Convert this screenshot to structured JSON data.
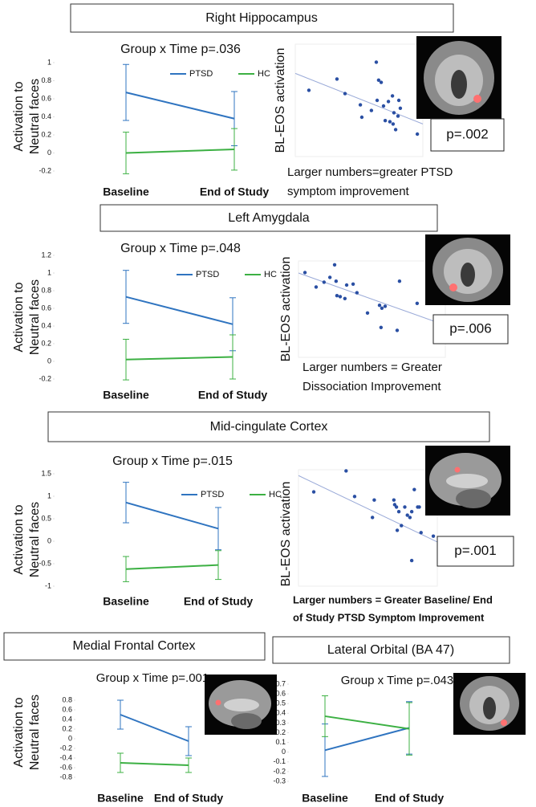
{
  "sections": [
    "Right Hippocampus",
    "Left Amygdala",
    "Mid-cingulate Cortex",
    "Medial Frontal Cortex",
    "Lateral Orbital (BA 47)"
  ],
  "chart_data": [
    {
      "type": "line",
      "title": "Group x Time p=.036",
      "ylabel": [
        "Activation to",
        "Neutral faces"
      ],
      "categories": [
        "Baseline",
        "End of Study"
      ],
      "ylim": [
        -0.2,
        1
      ],
      "yticks": [
        -0.2,
        0,
        0.2,
        0.4,
        0.6,
        0.8,
        1
      ],
      "legend": true,
      "series": [
        {
          "name": "PTSD",
          "color": "#2f74c0",
          "values": [
            0.67,
            0.38
          ],
          "errors": [
            0.31,
            0.3
          ]
        },
        {
          "name": "HC",
          "color": "#3cb043",
          "values": [
            0.0,
            0.04
          ],
          "errors": [
            0.23,
            0.23
          ]
        }
      ]
    },
    {
      "type": "scatter",
      "ylabel": "BL-EOS activation",
      "annotation": "p=.002",
      "caption": [
        "Larger numbers=greater PTSD",
        "symptom improvement"
      ],
      "color": "#2a4fa3",
      "xlim": [
        -20,
        40
      ],
      "ylim": [
        0,
        1
      ],
      "x": [
        -13.6,
        -0.4,
        3.4,
        10.6,
        11.3,
        15.8,
        18.5,
        18.1,
        19.2,
        20.4,
        21.5,
        22.3,
        23.8,
        24.5,
        25.7,
        26,
        26.4,
        27.2,
        28.3,
        28.7,
        29.4,
        37.4
      ],
      "y": [
        0.59,
        0.69,
        0.56,
        0.46,
        0.35,
        0.41,
        0.5,
        0.84,
        0.68,
        0.66,
        0.45,
        0.32,
        0.49,
        0.31,
        0.54,
        0.29,
        0.39,
        0.24,
        0.36,
        0.5,
        0.43,
        0.2
      ],
      "trendline": {
        "x": [
          -20,
          40
        ],
        "y": [
          0.74,
          0.29
        ]
      }
    },
    {
      "type": "line",
      "title": "Group x Time p=.048",
      "ylabel": [
        "Activation to",
        "Neutral faces"
      ],
      "categories": [
        "Baseline",
        "End of Study"
      ],
      "ylim": [
        -0.2,
        1.2
      ],
      "yticks": [
        -0.2,
        0,
        0.2,
        0.4,
        0.6,
        0.8,
        1,
        1.2
      ],
      "legend": true,
      "series": [
        {
          "name": "PTSD",
          "color": "#2f74c0",
          "values": [
            0.73,
            0.42
          ],
          "errors": [
            0.3,
            0.3
          ]
        },
        {
          "name": "HC",
          "color": "#3cb043",
          "values": [
            0.02,
            0.05
          ],
          "errors": [
            0.23,
            0.25
          ]
        }
      ]
    },
    {
      "type": "scatter",
      "ylabel": "BL-EOS activation",
      "annotation": "p=.006",
      "caption": [
        "Larger numbers = Greater",
        "Dissociation  Improvement"
      ],
      "color": "#2a4fa3",
      "xlim": [
        -1,
        4
      ],
      "ylim": [
        0,
        1
      ],
      "x": [
        -0.78,
        -0.4,
        -0.13,
        0.07,
        0.23,
        0.28,
        0.31,
        0.42,
        0.58,
        0.64,
        0.86,
        0.99,
        1.35,
        1.76,
        1.81,
        1.84,
        1.95,
        2.36,
        2.44,
        3.04
      ],
      "y": [
        0.88,
        0.73,
        0.78,
        0.83,
        0.96,
        0.79,
        0.64,
        0.63,
        0.61,
        0.75,
        0.76,
        0.67,
        0.46,
        0.54,
        0.31,
        0.51,
        0.53,
        0.28,
        0.79,
        0.56
      ],
      "trendline": {
        "x": [
          -1,
          4
        ],
        "y": [
          0.875,
          0.333
        ]
      }
    },
    {
      "type": "line",
      "title": "Group x Time p=.015",
      "ylabel": [
        "Activation to",
        "Neutral faces"
      ],
      "categories": [
        "Baseline",
        "End of Study"
      ],
      "ylim": [
        -1,
        1.5
      ],
      "yticks": [
        -1,
        -0.5,
        0,
        0.5,
        1,
        1.5
      ],
      "legend": true,
      "series": [
        {
          "name": "PTSD",
          "color": "#2f74c0",
          "values": [
            0.86,
            0.28
          ],
          "errors": [
            0.45,
            0.47
          ]
        },
        {
          "name": "HC",
          "color": "#3cb043",
          "values": [
            -0.62,
            -0.53
          ],
          "errors": [
            0.28,
            0.32
          ]
        }
      ]
    },
    {
      "type": "scatter",
      "ylabel": "BL-EOS activation",
      "annotation": "p=.001",
      "caption": [
        "Larger numbers = Greater Baseline/ End",
        "of Study PTSD Symptom Improvement"
      ],
      "color": "#2a4fa3",
      "xlim": [
        -20,
        50
      ],
      "ylim": [
        0,
        1
      ],
      "x": [
        -12.3,
        4.0,
        8.3,
        18.2,
        17.3,
        28.1,
        28.5,
        29.4,
        30.6,
        31.9,
        33.6,
        34.9,
        36.2,
        37.1,
        38.4,
        40.1,
        40.9,
        41.8,
        37.1,
        48,
        29.8
      ],
      "y": [
        0.81,
        0.99,
        0.77,
        0.74,
        0.59,
        0.74,
        0.7,
        0.68,
        0.64,
        0.52,
        0.68,
        0.61,
        0.59,
        0.64,
        0.83,
        0.68,
        0.68,
        0.46,
        0.22,
        0.43,
        0.48
      ],
      "trendline": {
        "x": [
          -20,
          50
        ],
        "y": [
          0.95,
          0.38
        ]
      }
    },
    {
      "type": "line",
      "title": "Group x Time p=.001",
      "ylabel": [
        "Activation to",
        "Neutral faces"
      ],
      "categories": [
        "Baseline",
        "End of Study"
      ],
      "ylim": [
        -0.8,
        0.8
      ],
      "yticks": [
        -0.8,
        -0.6,
        -0.4,
        -0.2,
        0,
        0.2,
        0.4,
        0.6,
        0.8
      ],
      "legend": false,
      "series": [
        {
          "color": "#2f74c0",
          "values": [
            0.5,
            -0.05
          ],
          "errors": [
            0.3,
            0.3
          ]
        },
        {
          "color": "#3cb043",
          "values": [
            -0.5,
            -0.55
          ],
          "errors": [
            0.2,
            0.15
          ]
        }
      ]
    },
    {
      "type": "line",
      "title": "Group x Time p=.043",
      "categories": [
        "Baseline",
        "End of Study"
      ],
      "ylim": [
        -0.3,
        0.7
      ],
      "yticks": [
        -0.3,
        -0.2,
        -0.1,
        0,
        0.1,
        0.2,
        0.3,
        0.4,
        0.5,
        0.6,
        0.7
      ],
      "legend": false,
      "series": [
        {
          "color": "#2f74c0",
          "values": [
            0.02,
            0.25
          ],
          "errors": [
            0.27,
            0.27
          ]
        },
        {
          "color": "#3cb043",
          "values": [
            0.37,
            0.24
          ],
          "errors": [
            0.21,
            0.27
          ]
        }
      ]
    }
  ]
}
